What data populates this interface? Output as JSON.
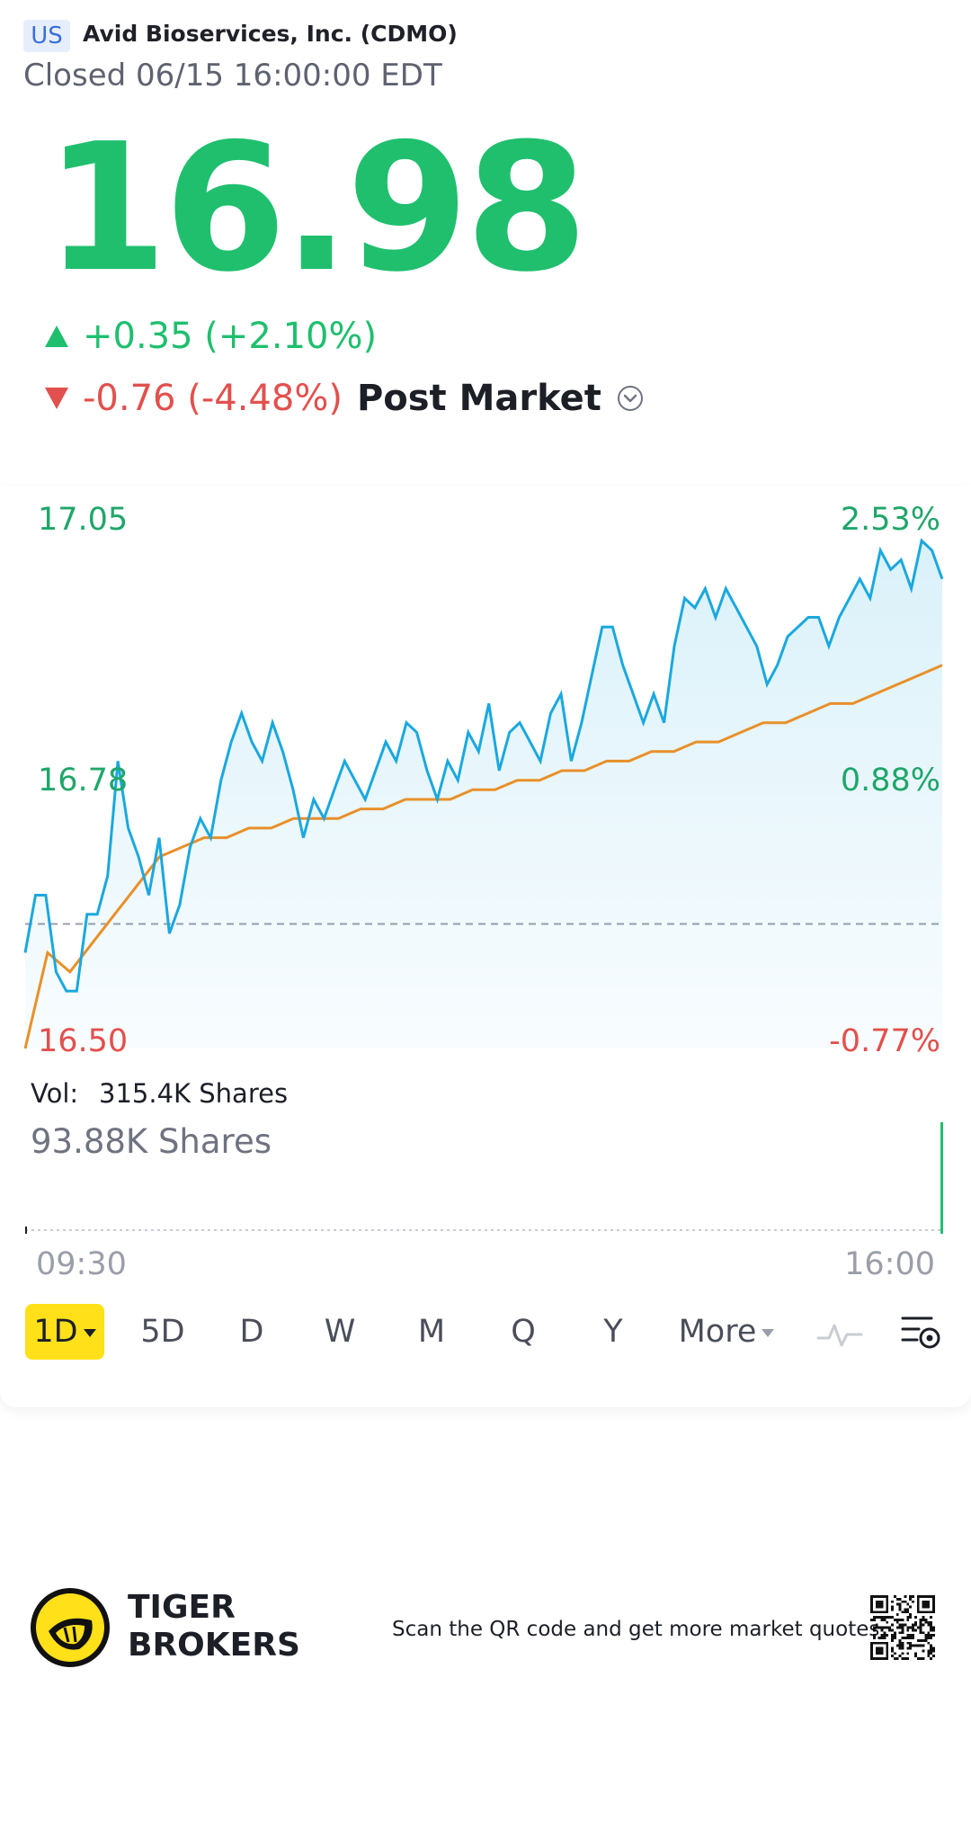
{
  "header": {
    "market_tag": "US",
    "company_name": "Avid Bioservices, Inc. (CDMO)",
    "status_line": "Closed 06/15 16:00:00 EDT"
  },
  "quote": {
    "price": "16.98",
    "regular_change": "+0.35 (+2.10%)",
    "post_market_change": "-0.76 (-4.48%)",
    "post_market_label": "Post Market",
    "up_color": "#1fbf6e",
    "down_color": "#e2504d"
  },
  "chart_data": {
    "type": "line",
    "y_labels": {
      "top": "17.05",
      "mid": "16.78",
      "bottom": "16.50"
    },
    "pct_labels": {
      "top": "2.53%",
      "mid": "0.88%",
      "bottom": "-0.77%"
    },
    "ylim": [
      16.5,
      17.05
    ],
    "prev_close": 16.63,
    "x_labels": [
      "09:30",
      "16:00"
    ],
    "price_series": [
      16.6,
      16.66,
      16.66,
      16.58,
      16.56,
      16.56,
      16.64,
      16.64,
      16.68,
      16.8,
      16.73,
      16.7,
      16.66,
      16.72,
      16.62,
      16.65,
      16.71,
      16.74,
      16.72,
      16.78,
      16.82,
      16.85,
      16.82,
      16.8,
      16.84,
      16.81,
      16.77,
      16.72,
      16.76,
      16.74,
      16.77,
      16.8,
      16.78,
      16.76,
      16.79,
      16.82,
      16.8,
      16.84,
      16.83,
      16.79,
      16.76,
      16.8,
      16.78,
      16.83,
      16.81,
      16.86,
      16.79,
      16.83,
      16.84,
      16.82,
      16.8,
      16.85,
      16.87,
      16.8,
      16.84,
      16.89,
      16.94,
      16.94,
      16.9,
      16.87,
      16.84,
      16.87,
      16.84,
      16.92,
      16.97,
      16.96,
      16.98,
      16.95,
      16.98,
      16.96,
      16.94,
      16.92,
      16.88,
      16.9,
      16.93,
      16.94,
      16.95,
      16.95,
      16.92,
      16.95,
      16.97,
      16.99,
      16.97,
      17.02,
      17.0,
      17.01,
      16.98,
      17.03,
      17.02,
      16.99
    ],
    "avg_series": [
      16.5,
      16.6,
      16.58,
      16.61,
      16.64,
      16.67,
      16.7,
      16.71,
      16.72,
      16.72,
      16.73,
      16.73,
      16.74,
      16.74,
      16.74,
      16.75,
      16.75,
      16.76,
      16.76,
      16.76,
      16.77,
      16.77,
      16.78,
      16.78,
      16.79,
      16.79,
      16.8,
      16.8,
      16.81,
      16.81,
      16.82,
      16.82,
      16.83,
      16.84,
      16.84,
      16.85,
      16.86,
      16.86,
      16.87,
      16.88,
      16.89,
      16.9
    ],
    "volume_label": "Vol:",
    "volume_total": "315.4K Shares",
    "volume_scale": "93.88K Shares"
  },
  "periods": [
    "1D",
    "5D",
    "D",
    "W",
    "M",
    "Q",
    "Y",
    "More"
  ],
  "toolbar_icons": [
    "indicator-icon",
    "chart-settings-icon"
  ],
  "footer": {
    "brand_line1": "TIGER",
    "brand_line2": "BROKERS",
    "cta": "Scan the QR code and get more market quotes"
  }
}
